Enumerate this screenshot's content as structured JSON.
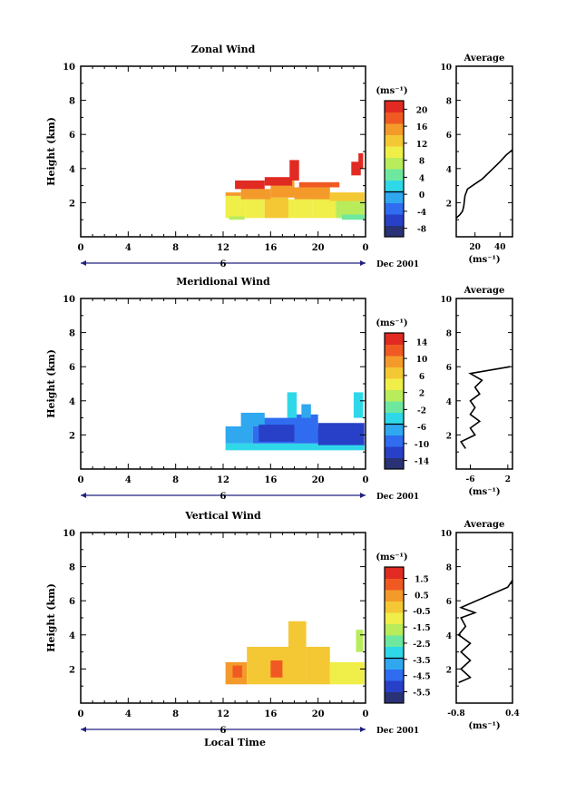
{
  "figure": {
    "xlabel": "Local Time",
    "date_label": "Dec 2001",
    "date_day": "6",
    "colorbar_unit": "(ms⁻¹)",
    "average_title": "Average",
    "ylabel": "Height (km)"
  },
  "colors": {
    "scale": [
      "#283275",
      "#2840c8",
      "#2f6cf0",
      "#2fa8f0",
      "#2fd8e8",
      "#6ee89e",
      "#b8ec5a",
      "#f0ee48",
      "#f4c834",
      "#f49a2a",
      "#f05a22",
      "#e02a22"
    ],
    "line": "#000000",
    "timebar": "#202080"
  },
  "chart_data": [
    {
      "type": "heatmap",
      "title": "Zonal Wind",
      "xlabel": "Local Time",
      "ylabel": "Height (km)",
      "xlim": [
        0,
        24
      ],
      "ylim": [
        0,
        10
      ],
      "x_ticks": [
        "0",
        "4",
        "8",
        "12",
        "16",
        "20",
        "0"
      ],
      "y_ticks": [
        "2",
        "4",
        "6",
        "8",
        "10"
      ],
      "colorbar": {
        "unit": "(ms⁻¹)",
        "ticks": [
          "20",
          "16",
          "12",
          "8",
          "4",
          "0",
          "-4",
          "-8"
        ],
        "range": [
          -10,
          22
        ]
      },
      "cells": [
        {
          "t0": 12.2,
          "t1": 13.9,
          "h0": 1.1,
          "h1": 2.4,
          "v": 9
        },
        {
          "t0": 13.9,
          "t1": 15.5,
          "h0": 1.1,
          "h1": 2.2,
          "v": 10
        },
        {
          "t0": 15.5,
          "t1": 17.5,
          "h0": 1.1,
          "h1": 2.3,
          "v": 12
        },
        {
          "t0": 17.5,
          "t1": 19.5,
          "h0": 1.1,
          "h1": 2.2,
          "v": 11
        },
        {
          "t0": 19.5,
          "t1": 21.5,
          "h0": 1.1,
          "h1": 2.3,
          "v": 10
        },
        {
          "t0": 21.5,
          "t1": 23.9,
          "h0": 1.1,
          "h1": 2.1,
          "v": 8
        },
        {
          "t0": 12.2,
          "t1": 13.5,
          "h0": 2.4,
          "h1": 2.6,
          "v": 14
        },
        {
          "t0": 13.5,
          "t1": 16.0,
          "h0": 2.2,
          "h1": 2.8,
          "v": 15
        },
        {
          "t0": 16.0,
          "t1": 18.0,
          "h0": 2.3,
          "h1": 3.3,
          "v": 16
        },
        {
          "t0": 18.0,
          "t1": 21.0,
          "h0": 2.2,
          "h1": 2.9,
          "v": 14
        },
        {
          "t0": 21.0,
          "t1": 23.9,
          "h0": 2.1,
          "h1": 2.6,
          "v": 13
        },
        {
          "t0": 13.0,
          "t1": 15.5,
          "h0": 2.8,
          "h1": 3.3,
          "v": 20
        },
        {
          "t0": 15.5,
          "t1": 17.8,
          "h0": 3.0,
          "h1": 3.5,
          "v": 20
        },
        {
          "t0": 17.6,
          "t1": 18.4,
          "h0": 3.3,
          "h1": 4.5,
          "v": 21
        },
        {
          "t0": 18.4,
          "t1": 21.8,
          "h0": 2.9,
          "h1": 3.2,
          "v": 19
        },
        {
          "t0": 22.8,
          "t1": 23.6,
          "h0": 3.6,
          "h1": 4.4,
          "v": 21
        },
        {
          "t0": 23.4,
          "t1": 23.8,
          "h0": 4.0,
          "h1": 4.9,
          "v": 20
        },
        {
          "t0": 12.5,
          "t1": 13.8,
          "h0": 1.0,
          "h1": 1.2,
          "v": 6
        },
        {
          "t0": 22.0,
          "t1": 23.9,
          "h0": 1.0,
          "h1": 1.3,
          "v": 5
        }
      ],
      "profile": {
        "xlabel": "(ms⁻¹)",
        "x_ticks": [
          "20",
          "40"
        ],
        "xlim": [
          5,
          50
        ],
        "ylim": [
          0,
          10
        ],
        "points": [
          [
            5,
            1.1
          ],
          [
            8,
            1.3
          ],
          [
            10,
            1.5
          ],
          [
            11,
            1.8
          ],
          [
            12,
            2.4
          ],
          [
            14,
            2.8
          ],
          [
            20,
            3.1
          ],
          [
            26,
            3.4
          ],
          [
            33,
            3.9
          ],
          [
            40,
            4.4
          ],
          [
            45,
            4.8
          ],
          [
            50,
            5.1
          ]
        ]
      }
    },
    {
      "type": "heatmap",
      "title": "Meridional Wind",
      "xlabel": "Local Time",
      "ylabel": "Height (km)",
      "xlim": [
        0,
        24
      ],
      "ylim": [
        0,
        10
      ],
      "x_ticks": [
        "0",
        "4",
        "8",
        "12",
        "16",
        "20",
        "0"
      ],
      "y_ticks": [
        "2",
        "4",
        "6",
        "8",
        "10"
      ],
      "colorbar": {
        "unit": "(ms⁻¹)",
        "ticks": [
          "14",
          "10",
          "6",
          "2",
          "-2",
          "-6",
          "-10",
          "-14"
        ],
        "range": [
          -16,
          16
        ]
      },
      "cells": [
        {
          "t0": 12.2,
          "t1": 23.9,
          "h0": 1.1,
          "h1": 1.5,
          "v": -4
        },
        {
          "t0": 12.2,
          "t1": 14.5,
          "h0": 1.5,
          "h1": 2.5,
          "v": -8
        },
        {
          "t0": 14.5,
          "t1": 17.5,
          "h0": 1.5,
          "h1": 3.0,
          "v": -10
        },
        {
          "t0": 17.5,
          "t1": 20.0,
          "h0": 1.5,
          "h1": 3.2,
          "v": -9
        },
        {
          "t0": 20.0,
          "t1": 23.9,
          "h0": 1.4,
          "h1": 2.7,
          "v": -11
        },
        {
          "t0": 13.5,
          "t1": 15.5,
          "h0": 2.5,
          "h1": 3.3,
          "v": -7
        },
        {
          "t0": 17.4,
          "t1": 18.2,
          "h0": 3.0,
          "h1": 4.5,
          "v": -5
        },
        {
          "t0": 18.6,
          "t1": 19.4,
          "h0": 3.0,
          "h1": 3.8,
          "v": -6
        },
        {
          "t0": 23.0,
          "t1": 23.8,
          "h0": 3.0,
          "h1": 4.5,
          "v": -4
        },
        {
          "t0": 15.0,
          "t1": 18.0,
          "h0": 1.6,
          "h1": 2.6,
          "v": -13
        },
        {
          "t0": 20.0,
          "t1": 22.5,
          "h0": 1.6,
          "h1": 2.4,
          "v": -13
        }
      ],
      "profile": {
        "xlabel": "(ms⁻¹)",
        "x_ticks": [
          "-6",
          "2"
        ],
        "xlim": [
          -9,
          3
        ],
        "ylim": [
          0,
          10
        ],
        "points": [
          [
            -7,
            1.2
          ],
          [
            -8,
            1.6
          ],
          [
            -5,
            2.0
          ],
          [
            -6,
            2.4
          ],
          [
            -4,
            2.8
          ],
          [
            -6,
            3.2
          ],
          [
            -5,
            3.6
          ],
          [
            -6,
            4.0
          ],
          [
            -4,
            4.4
          ],
          [
            -5,
            4.8
          ],
          [
            -3.5,
            5.2
          ],
          [
            -6,
            5.6
          ],
          [
            2.5,
            6.0
          ]
        ]
      }
    },
    {
      "type": "heatmap",
      "title": "Vertical Wind",
      "xlabel": "Local Time",
      "ylabel": "Height (km)",
      "xlim": [
        0,
        24
      ],
      "ylim": [
        0,
        10
      ],
      "x_ticks": [
        "0",
        "4",
        "8",
        "12",
        "16",
        "20",
        "0"
      ],
      "y_ticks": [
        "2",
        "4",
        "6",
        "8",
        "10"
      ],
      "colorbar": {
        "unit": "(ms⁻¹)",
        "ticks": [
          "1.5",
          "0.5",
          "-0.5",
          "-1.5",
          "-2.5",
          "-3.5",
          "-4.5",
          "-5.5"
        ],
        "range": [
          -6.2,
          2.2
        ]
      },
      "cells": [
        {
          "t0": 12.2,
          "t1": 14.0,
          "h0": 1.1,
          "h1": 2.4,
          "v": 0.3
        },
        {
          "t0": 14.0,
          "t1": 17.5,
          "h0": 1.1,
          "h1": 3.3,
          "v": -0.3
        },
        {
          "t0": 17.5,
          "t1": 19.0,
          "h0": 1.1,
          "h1": 4.8,
          "v": 0.0
        },
        {
          "t0": 19.0,
          "t1": 21.0,
          "h0": 1.1,
          "h1": 3.3,
          "v": -0.6
        },
        {
          "t0": 21.0,
          "t1": 23.9,
          "h0": 1.1,
          "h1": 2.4,
          "v": -0.9
        },
        {
          "t0": 16.0,
          "t1": 17.0,
          "h0": 1.5,
          "h1": 2.5,
          "v": 1.2
        },
        {
          "t0": 12.8,
          "t1": 13.6,
          "h0": 1.5,
          "h1": 2.2,
          "v": 1.0
        },
        {
          "t0": 23.2,
          "t1": 23.8,
          "h0": 3.0,
          "h1": 4.3,
          "v": -2.0
        }
      ],
      "profile": {
        "xlabel": "(ms⁻¹)",
        "x_ticks": [
          "-0.8",
          "0.4"
        ],
        "xlim": [
          -0.8,
          0.4
        ],
        "ylim": [
          0,
          10
        ],
        "points": [
          [
            -0.75,
            1.2
          ],
          [
            -0.5,
            1.5
          ],
          [
            -0.7,
            2.0
          ],
          [
            -0.5,
            2.5
          ],
          [
            -0.7,
            3.0
          ],
          [
            -0.5,
            3.5
          ],
          [
            -0.75,
            4.0
          ],
          [
            -0.6,
            4.5
          ],
          [
            -0.7,
            5.0
          ],
          [
            -0.4,
            5.3
          ],
          [
            -0.7,
            5.6
          ],
          [
            0.3,
            6.8
          ],
          [
            0.4,
            7.2
          ]
        ]
      }
    }
  ]
}
